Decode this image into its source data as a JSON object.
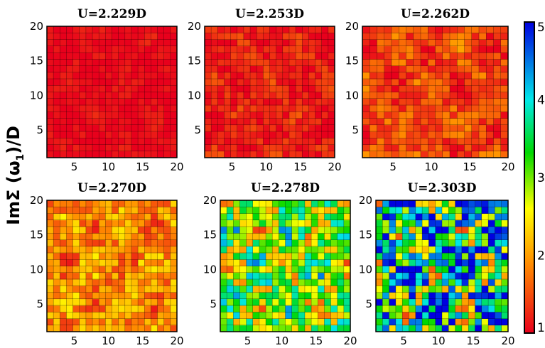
{
  "figure": {
    "ylabel_prefix": "Im",
    "ylabel_sigma": "Σ",
    "ylabel_open": " (",
    "ylabel_omega": "ω",
    "ylabel_sub": "1",
    "ylabel_rest": ")/D"
  },
  "chart_data": [
    {
      "type": "heatmap",
      "title": "U=2.229D",
      "x_ticks": [
        "5",
        "10",
        "15",
        "20"
      ],
      "y_ticks": [
        "5",
        "10",
        "15",
        "20"
      ],
      "xlim": [
        1,
        20
      ],
      "ylim": [
        1,
        20
      ],
      "grid": true,
      "colorscale": "red-yellow-green-cyan-blue",
      "zrange": [
        1,
        5
      ],
      "mean_value": 1.05
    },
    {
      "type": "heatmap",
      "title": "U=2.253D",
      "x_ticks": [
        "5",
        "10",
        "15",
        "20"
      ],
      "y_ticks": [
        "5",
        "10",
        "15",
        "20"
      ],
      "xlim": [
        1,
        20
      ],
      "ylim": [
        1,
        20
      ],
      "grid": true,
      "colorscale": "red-yellow-green-cyan-blue",
      "zrange": [
        1,
        5
      ],
      "mean_value": 1.2
    },
    {
      "type": "heatmap",
      "title": "U=2.262D",
      "x_ticks": [
        "5",
        "10",
        "15",
        "20"
      ],
      "y_ticks": [
        "5",
        "10",
        "15",
        "20"
      ],
      "xlim": [
        1,
        20
      ],
      "ylim": [
        1,
        20
      ],
      "grid": true,
      "colorscale": "red-yellow-green-cyan-blue",
      "zrange": [
        1,
        5
      ],
      "mean_value": 1.45
    },
    {
      "type": "heatmap",
      "title": "U=2.270D",
      "x_ticks": [
        "5",
        "10",
        "15",
        "20"
      ],
      "y_ticks": [
        "5",
        "10",
        "15",
        "20"
      ],
      "xlim": [
        1,
        20
      ],
      "ylim": [
        1,
        20
      ],
      "grid": true,
      "colorscale": "red-yellow-green-cyan-blue",
      "zrange": [
        1,
        5
      ],
      "mean_value": 1.9
    },
    {
      "type": "heatmap",
      "title": "U=2.278D",
      "x_ticks": [
        "5",
        "10",
        "15",
        "20"
      ],
      "y_ticks": [
        "5",
        "10",
        "15",
        "20"
      ],
      "xlim": [
        1,
        20
      ],
      "ylim": [
        1,
        20
      ],
      "grid": true,
      "colorscale": "red-yellow-green-cyan-blue",
      "zrange": [
        1,
        5
      ],
      "mean_value": 3.0
    },
    {
      "type": "heatmap",
      "title": "U=2.303D",
      "x_ticks": [
        "5",
        "10",
        "15",
        "20"
      ],
      "y_ticks": [
        "5",
        "10",
        "15",
        "20"
      ],
      "xlim": [
        1,
        20
      ],
      "ylim": [
        1,
        20
      ],
      "grid": true,
      "colorscale": "red-yellow-green-cyan-blue",
      "zrange": [
        1,
        5
      ],
      "mean_value": 3.7
    }
  ],
  "colorbar": {
    "ticks": [
      "1",
      "2",
      "3",
      "4",
      "5"
    ],
    "range": [
      1,
      5
    ],
    "colors": [
      "#e8001c",
      "#ff8a00",
      "#ffff00",
      "#00d800",
      "#00e8e8",
      "#0000e0"
    ]
  }
}
